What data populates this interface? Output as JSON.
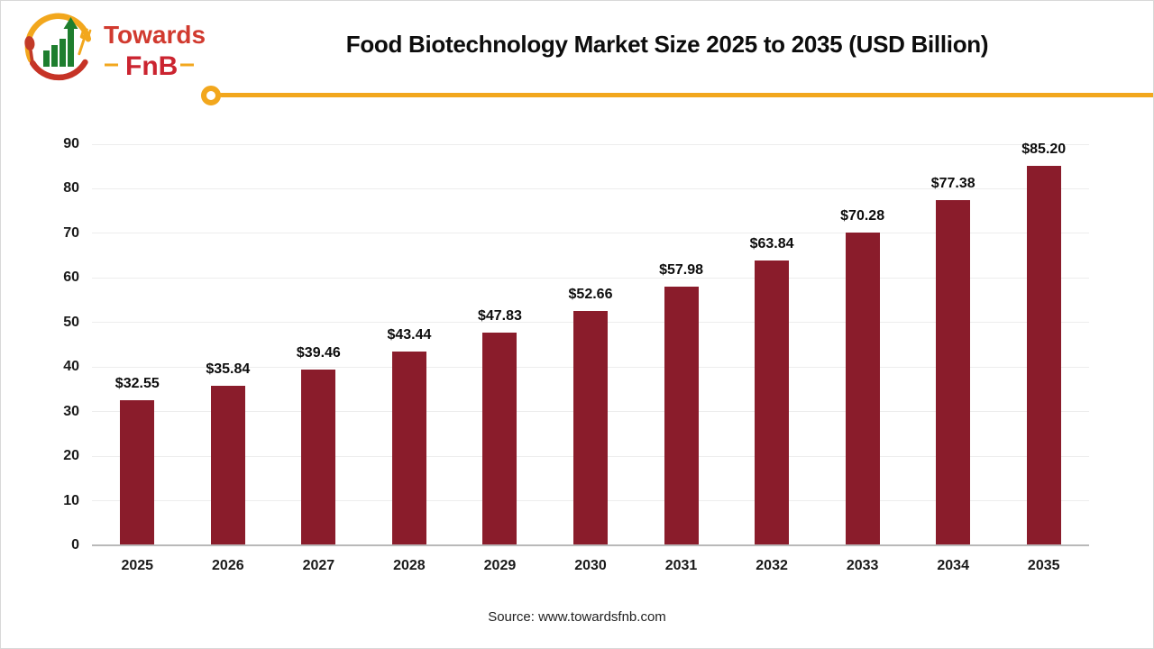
{
  "header": {
    "title": "Food Biotechnology Market Size 2025 to 2035 (USD Billion)"
  },
  "logo": {
    "name_top": "Towards",
    "name_bottom": "FnB"
  },
  "footer": {
    "source": "Source: www.towardsfnb.com"
  },
  "colors": {
    "bar_maroon": "#8A1C2B",
    "accent_yellow": "#F2A71D",
    "logo_red": "#D13A2F",
    "logo_dark_red": "#C63326",
    "logo_green": "#1E7E2E",
    "gridline": "#EDEDED",
    "axis_line": "#B9B9B9"
  },
  "chart_data": {
    "type": "bar",
    "title": "Food Biotechnology Market Size 2025 to 2035 (USD Billion)",
    "categories": [
      "2025",
      "2026",
      "2027",
      "2028",
      "2029",
      "2030",
      "2031",
      "2032",
      "2033",
      "2034",
      "2035"
    ],
    "values": [
      32.55,
      35.84,
      39.46,
      43.44,
      47.83,
      52.66,
      57.98,
      63.84,
      70.28,
      77.38,
      85.2
    ],
    "labels": [
      "$32.55",
      "$35.84",
      "$39.46",
      "$43.44",
      "$47.83",
      "$52.66",
      "$57.98",
      "$63.84",
      "$70.28",
      "$77.38",
      "$85.20"
    ],
    "xlabel": "",
    "ylabel": "",
    "ylim": [
      0,
      90
    ],
    "ytick_step": 10,
    "grid": true,
    "legend": false,
    "bar_color": "#8A1C2B"
  }
}
